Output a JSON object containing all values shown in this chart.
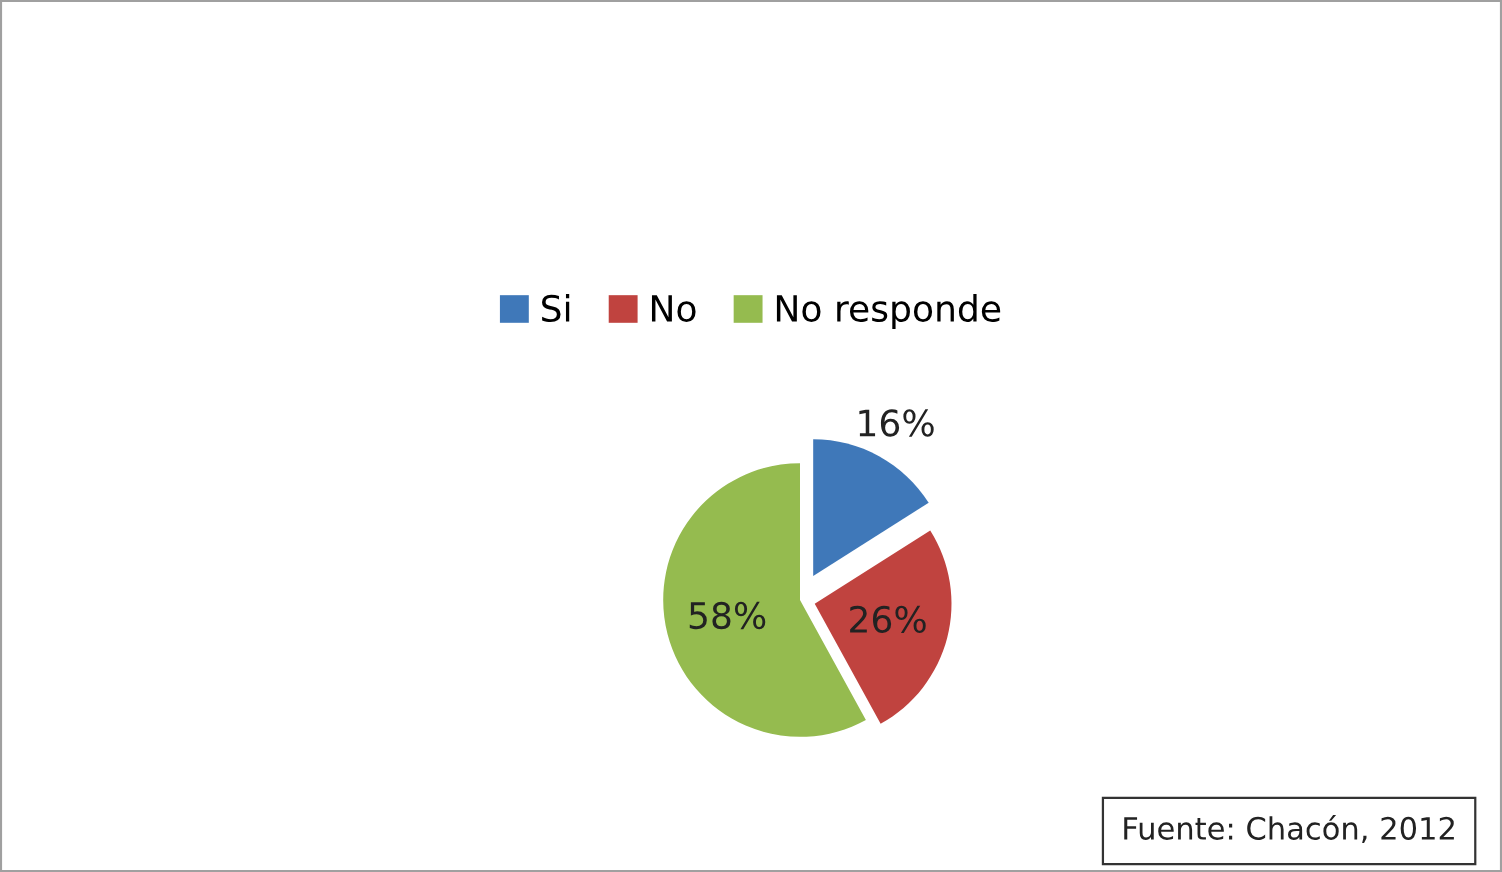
{
  "chart_data": {
    "type": "pie",
    "categories": [
      "Si",
      "No",
      "No responde"
    ],
    "values": [
      16,
      26,
      58
    ],
    "colors": [
      "#3f78b9",
      "#c0433f",
      "#95bb4f"
    ],
    "value_labels": [
      "16%",
      "26%",
      "58%"
    ],
    "legend": "top",
    "annotations": [
      "Fuente: Chacón, 2012"
    ]
  }
}
